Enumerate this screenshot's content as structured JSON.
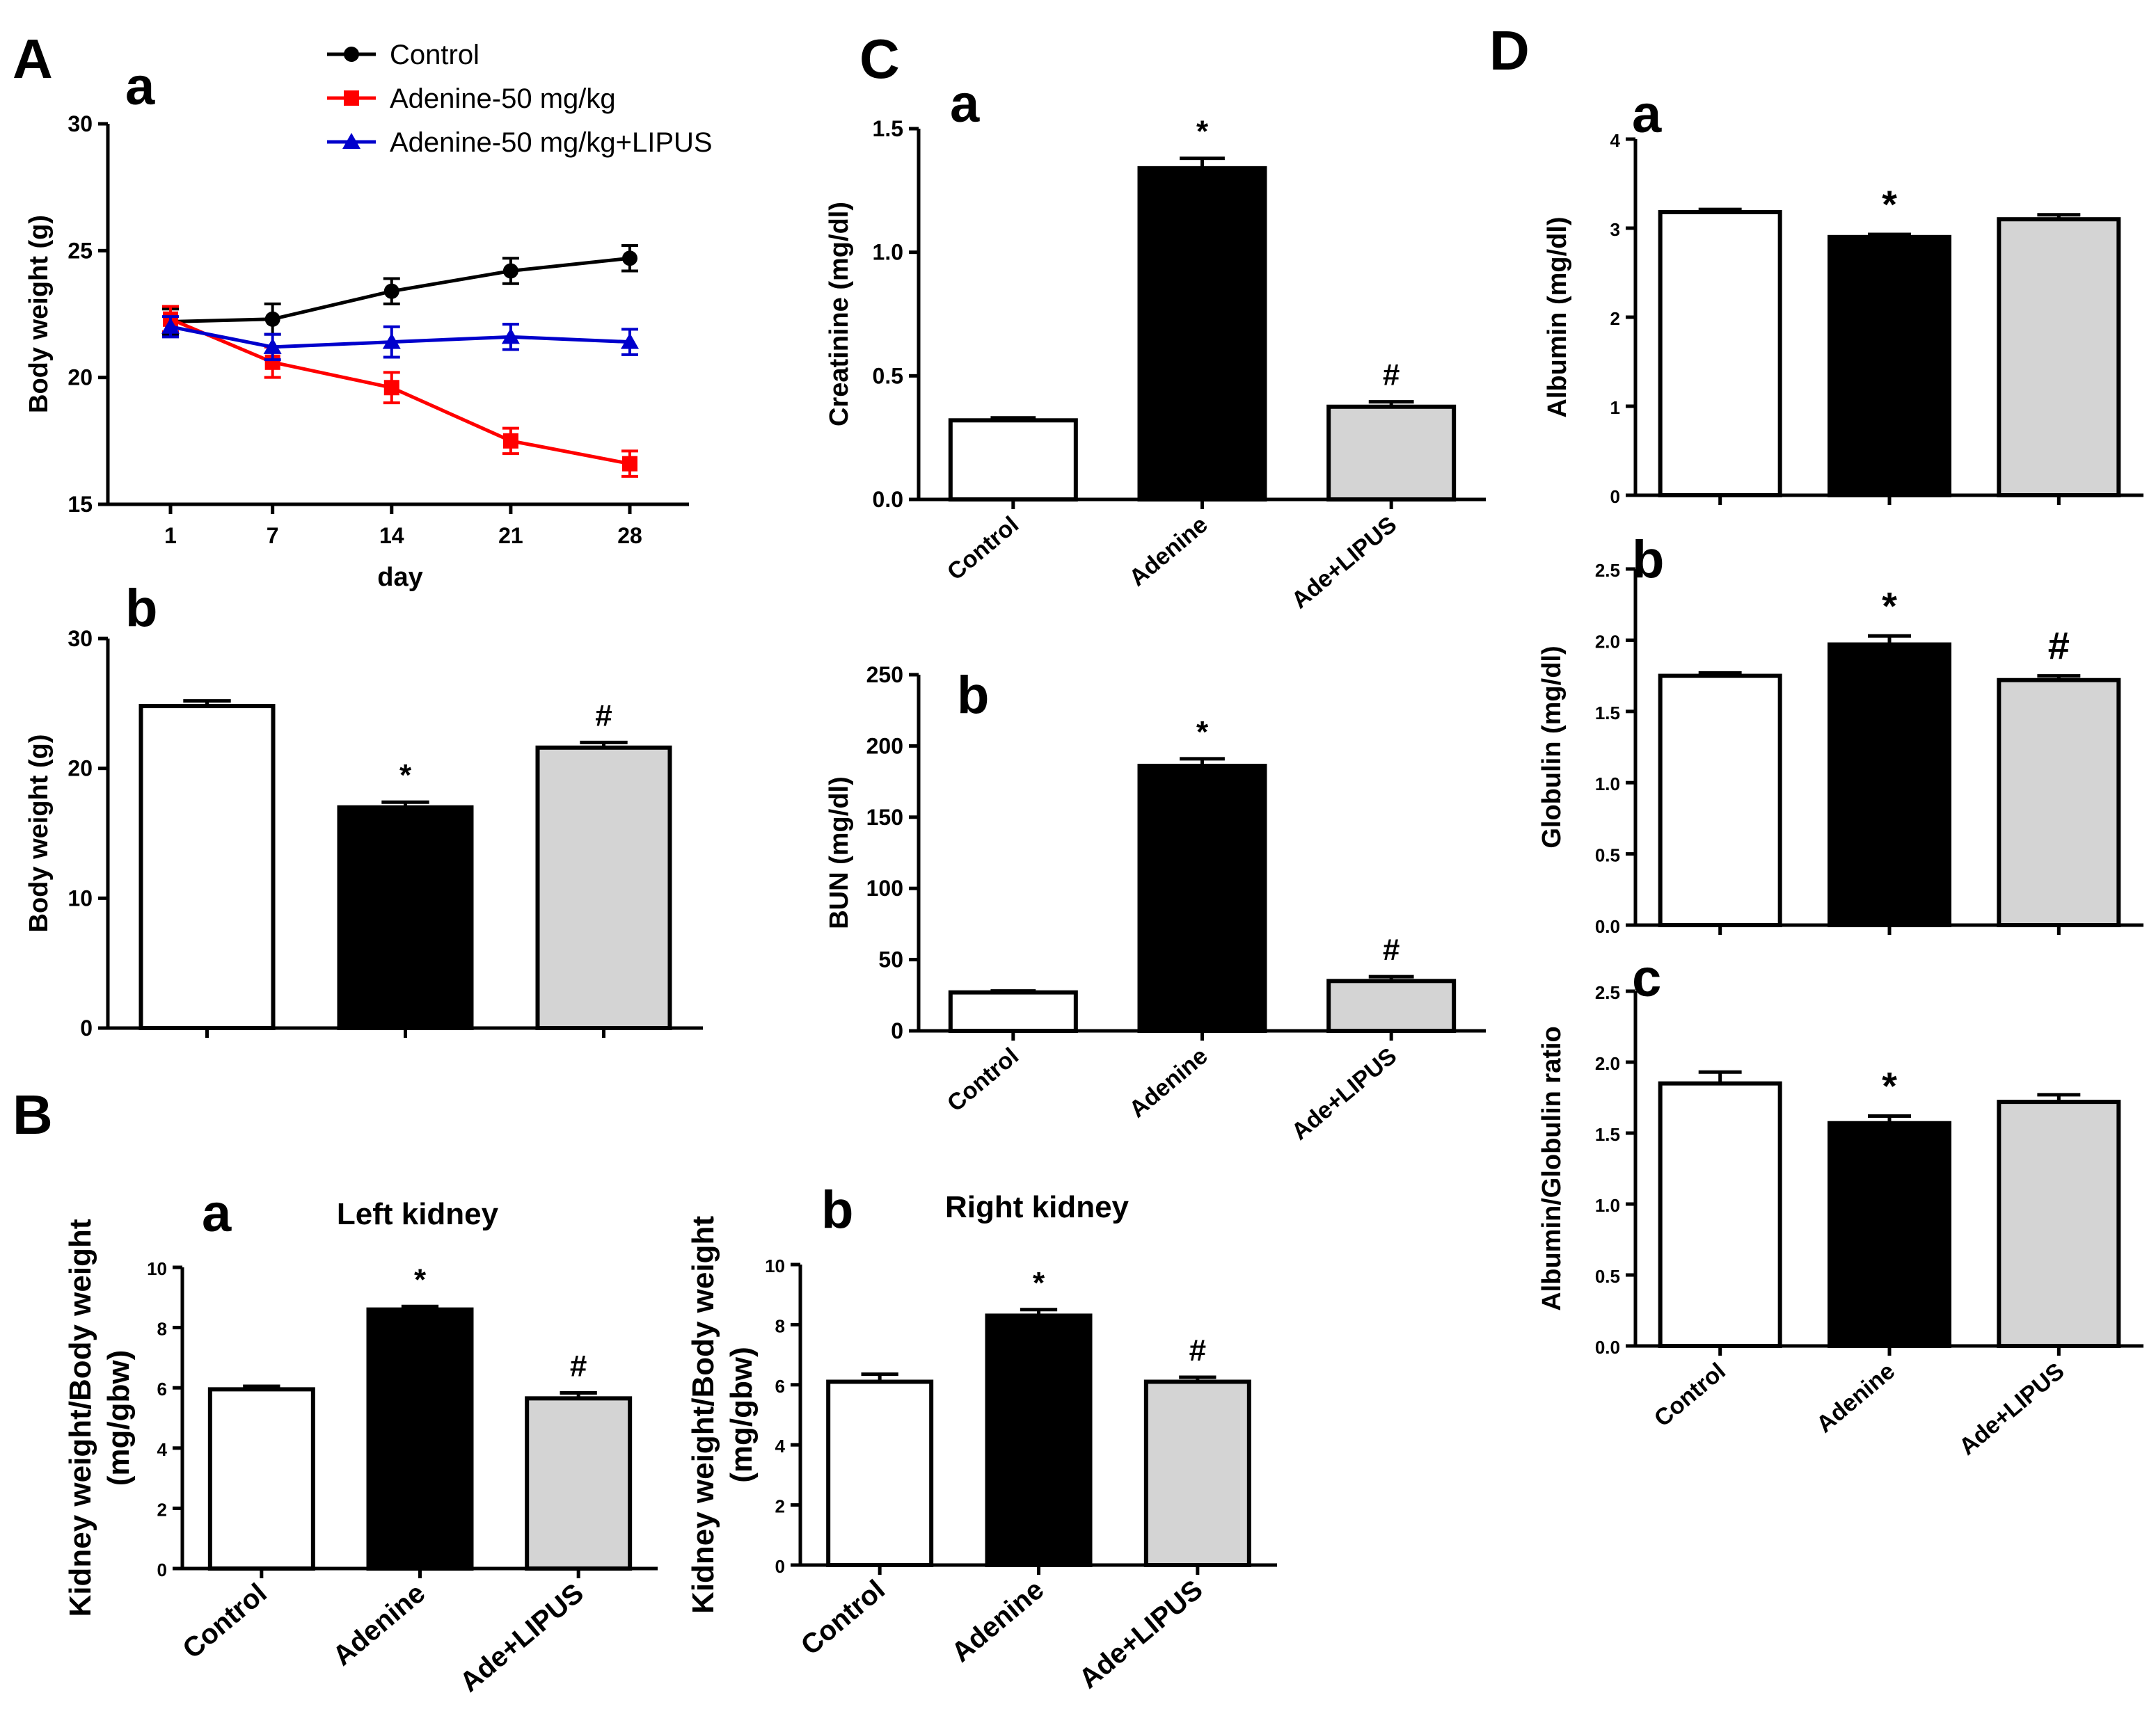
{
  "panel_labels": {
    "A": "A",
    "B": "B",
    "C": "C",
    "D": "D"
  },
  "colors": {
    "control": "#ffffff",
    "adenine": "#000000",
    "lipus": "#d4d4d4",
    "line_control": "#000000",
    "line_adenine": "#ff0000",
    "line_lipus": "#0000cc"
  },
  "chart_data": [
    {
      "id": "A-a",
      "panel": "A",
      "sublabel": "a",
      "type": "line",
      "x": [
        1,
        7,
        14,
        21,
        28
      ],
      "x_tick_labels": [
        "1",
        "7",
        "14",
        "21",
        "28"
      ],
      "xlabel": "day",
      "ylabel": "Body weight (g)",
      "ylim": [
        15,
        30
      ],
      "yticks": [
        15,
        20,
        25,
        30
      ],
      "legend_position": "top",
      "series": [
        {
          "name": "Control",
          "values": [
            22.2,
            22.3,
            23.4,
            24.2,
            24.7
          ],
          "errors": [
            0.5,
            0.6,
            0.5,
            0.5,
            0.5
          ],
          "color": "#000000",
          "marker": "circle"
        },
        {
          "name": "Adenine-50 mg/kg",
          "values": [
            22.3,
            20.6,
            19.6,
            17.5,
            16.6
          ],
          "errors": [
            0.5,
            0.6,
            0.6,
            0.5,
            0.5
          ],
          "color": "#ff0000",
          "marker": "square"
        },
        {
          "name": "Adenine-50 mg/kg+LIPUS",
          "values": [
            22.0,
            21.2,
            21.4,
            21.6,
            21.4
          ],
          "errors": [
            0.4,
            0.5,
            0.6,
            0.5,
            0.5
          ],
          "color": "#0000cc",
          "marker": "triangle"
        }
      ]
    },
    {
      "id": "A-b",
      "panel": "A",
      "sublabel": "b",
      "type": "bar",
      "categories": [
        "",
        "",
        ""
      ],
      "values": [
        24.8,
        17.0,
        21.6
      ],
      "errors": [
        0.4,
        0.4,
        0.4
      ],
      "marks": [
        "",
        "*",
        "#"
      ],
      "ylabel": "Body weight (g)",
      "ylim": [
        0,
        30
      ],
      "yticks": [
        0,
        10,
        20,
        30
      ]
    },
    {
      "id": "B-a",
      "panel": "B",
      "sublabel": "a",
      "type": "bar",
      "title": "Left kidney",
      "categories": [
        "Control",
        "Adenine",
        "Ade+LIPUS"
      ],
      "values": [
        5.95,
        8.6,
        5.65
      ],
      "errors": [
        0.1,
        0.1,
        0.18
      ],
      "marks": [
        "",
        "*",
        "#"
      ],
      "ylabel": [
        "Kidney weight/Body weight",
        "(mg/gbw)"
      ],
      "ylim": [
        0,
        10
      ],
      "yticks": [
        0,
        2,
        4,
        6,
        8,
        10
      ]
    },
    {
      "id": "B-b",
      "panel": "B",
      "sublabel": "b",
      "type": "bar",
      "title": "Right kidney",
      "categories": [
        "Control",
        "Adenine",
        "Ade+LIPUS"
      ],
      "values": [
        6.1,
        8.3,
        6.1
      ],
      "errors": [
        0.25,
        0.2,
        0.15
      ],
      "marks": [
        "",
        "*",
        "#"
      ],
      "ylabel": [
        "Kidney weight/Body weight",
        "(mg/gbw)"
      ],
      "ylim": [
        0,
        10
      ],
      "yticks": [
        0,
        2,
        4,
        6,
        8,
        10
      ]
    },
    {
      "id": "C-a",
      "panel": "C",
      "sublabel": "a",
      "type": "bar",
      "categories": [
        "Control",
        "Adenine",
        "Ade+LIPUS"
      ],
      "values": [
        0.32,
        1.34,
        0.375
      ],
      "errors": [
        0.01,
        0.04,
        0.02
      ],
      "marks": [
        "",
        "*",
        "#"
      ],
      "ylabel": "Creatinine (mg/dl)",
      "ylim": [
        0,
        1.5
      ],
      "yticks": [
        0.0,
        0.5,
        1.0,
        1.5
      ],
      "ytick_labels": [
        "0.0",
        "0.5",
        "1.0",
        "1.5"
      ]
    },
    {
      "id": "C-b",
      "panel": "C",
      "sublabel": "b",
      "type": "bar",
      "categories": [
        "Control",
        "Adenine",
        "Ade+LIPUS"
      ],
      "values": [
        27,
        186,
        35
      ],
      "errors": [
        1,
        5,
        3
      ],
      "marks": [
        "",
        "*",
        "#"
      ],
      "ylabel": "BUN (mg/dl)",
      "ylim": [
        0,
        250
      ],
      "yticks": [
        0,
        50,
        100,
        150,
        200,
        250
      ]
    },
    {
      "id": "D-a",
      "panel": "D",
      "sublabel": "a",
      "type": "bar",
      "categories": [
        "",
        "",
        ""
      ],
      "values": [
        3.18,
        2.9,
        3.1
      ],
      "errors": [
        0.03,
        0.03,
        0.05
      ],
      "marks": [
        "",
        "*",
        ""
      ],
      "ylabel": "Albumin (mg/dl)",
      "ylim": [
        0,
        4
      ],
      "yticks": [
        0,
        1,
        2,
        3,
        4
      ]
    },
    {
      "id": "D-b",
      "panel": "D",
      "sublabel": "b",
      "type": "bar",
      "categories": [
        "",
        "",
        ""
      ],
      "values": [
        1.75,
        1.97,
        1.72
      ],
      "errors": [
        0.02,
        0.06,
        0.03
      ],
      "marks": [
        "",
        "*",
        "#"
      ],
      "ylabel": "Globulin (mg/dl)",
      "ylim": [
        0,
        2.5
      ],
      "yticks": [
        0,
        0.5,
        1.0,
        1.5,
        2.0,
        2.5
      ],
      "ytick_labels": [
        "0.0",
        "0.5",
        "1.0",
        "1.5",
        "2.0",
        "2.5"
      ]
    },
    {
      "id": "D-c",
      "panel": "D",
      "sublabel": "c",
      "type": "bar",
      "categories": [
        "Control",
        "Adenine",
        "Ade+LIPUS"
      ],
      "values": [
        1.85,
        1.57,
        1.72
      ],
      "errors": [
        0.08,
        0.05,
        0.05
      ],
      "marks": [
        "",
        "*",
        ""
      ],
      "ylabel": "Albumin/Globulin ratio",
      "ylim": [
        0,
        2.5
      ],
      "yticks": [
        0,
        0.5,
        1.0,
        1.5,
        2.0,
        2.5
      ],
      "ytick_labels": [
        "0.0",
        "0.5",
        "1.0",
        "1.5",
        "2.0",
        "2.5"
      ]
    }
  ]
}
